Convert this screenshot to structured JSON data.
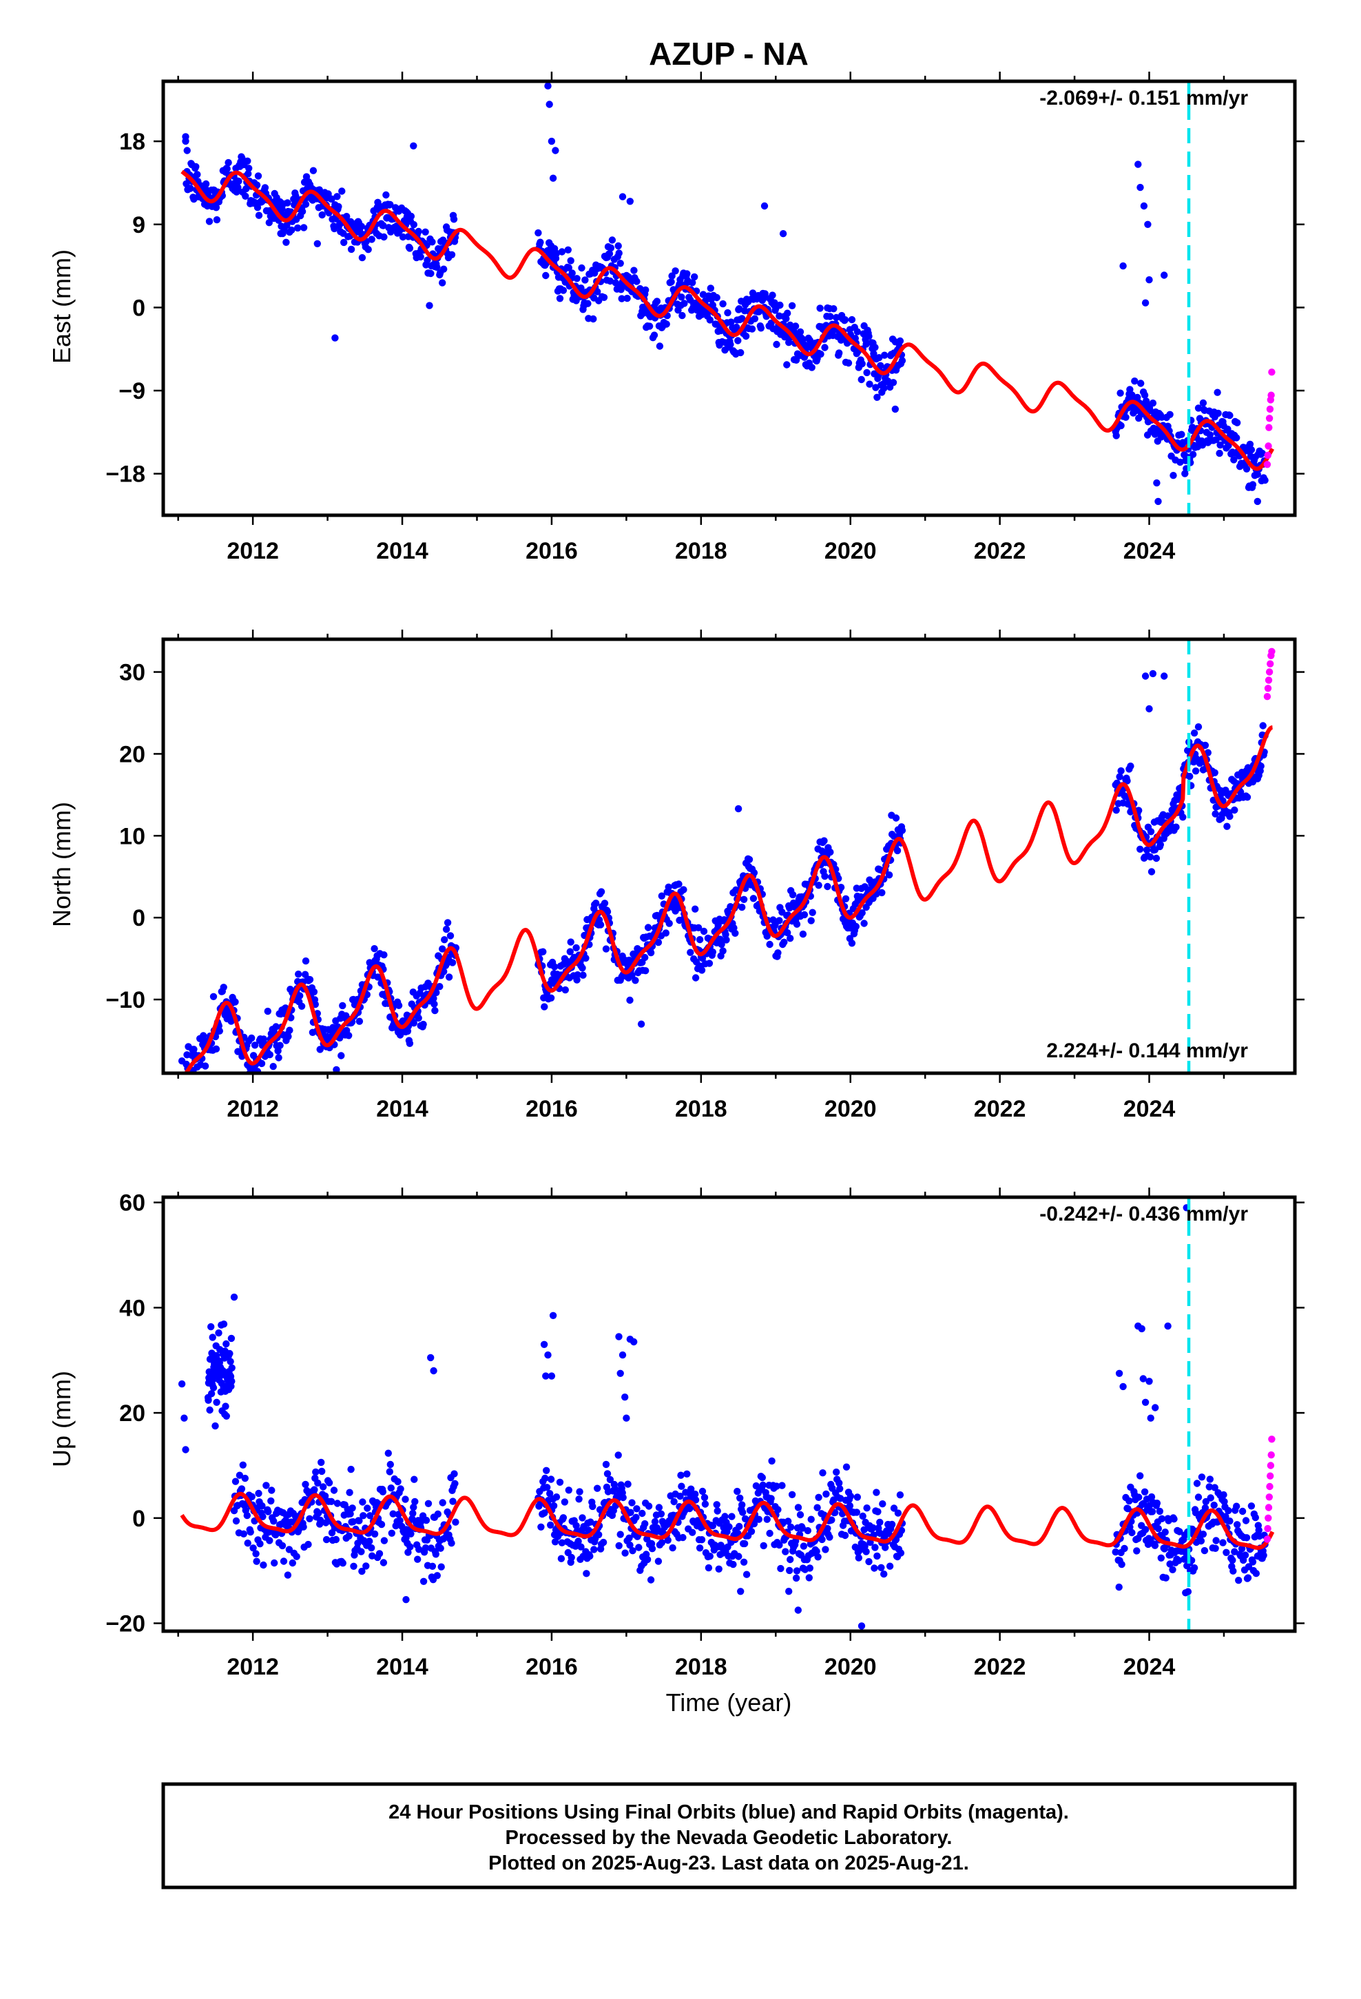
{
  "title": "AZUP - NA",
  "xlabel": "Time (year)",
  "footer": [
    "24 Hour Positions Using Final Orbits (blue) and Rapid Orbits (magenta).",
    "Processed by the Nevada Geodetic Laboratory.",
    "Plotted on 2025-Aug-23. Last data on 2025-Aug-21."
  ],
  "colors": {
    "final_orbits": "#0000ff",
    "rapid_orbits": "#ff00ff",
    "model": "#ff0000",
    "event_marker": "#00e5ee"
  },
  "chart_data": [
    {
      "type": "scatter",
      "component": "east",
      "ylabel": "East (mm)",
      "rate_text": "-2.069+/- 0.151 mm/yr",
      "rate_position": "top-right",
      "xlim": [
        2010.8,
        2025.95
      ],
      "ylim": [
        -22.5,
        24.5
      ],
      "yticks": [
        -18,
        -9,
        0,
        9,
        18
      ],
      "yticklabels": [
        "−18",
        "−9",
        "0",
        "9",
        "18"
      ],
      "xticks": [
        2012,
        2014,
        2016,
        2018,
        2020,
        2022,
        2024
      ],
      "xticklabels": [
        "2012",
        "2014",
        "2016",
        "2018",
        "2020",
        "2022",
        "2024"
      ],
      "event_line_x": 2024.53,
      "model": {
        "start": 2011.05,
        "end": 2025.65,
        "offset": 14.3,
        "rate": -2.069,
        "amp_annual": 1.7,
        "amp_semi": 0.5,
        "phase_annual": 0.62,
        "phase_semi": 0.1
      },
      "data_segments": [
        [
          2011.1,
          2014.72
        ],
        [
          2015.82,
          2020.7
        ],
        [
          2023.55,
          2025.55
        ]
      ],
      "scatter_sigma": 1.3,
      "rapid": {
        "start": 2025.58,
        "end": 2025.64,
        "values": [
          -17,
          -16,
          -15,
          -13,
          -12,
          -11,
          -10,
          -9.5,
          -7
        ]
      },
      "outliers": [
        [
          2011.1,
          18.5
        ],
        [
          2011.12,
          17
        ],
        [
          2013.1,
          -3.3
        ],
        [
          2014.15,
          17.5
        ],
        [
          2015.95,
          24
        ],
        [
          2015.97,
          22
        ],
        [
          2016.0,
          18
        ],
        [
          2016.05,
          17
        ],
        [
          2016.02,
          14
        ],
        [
          2016.95,
          12
        ],
        [
          2017.05,
          11.5
        ],
        [
          2018.85,
          11
        ],
        [
          2019.1,
          8
        ],
        [
          2020.6,
          -11
        ],
        [
          2023.65,
          4.5
        ],
        [
          2023.85,
          15.5
        ],
        [
          2023.88,
          13
        ],
        [
          2023.93,
          11
        ],
        [
          2023.98,
          9
        ],
        [
          2023.95,
          0.5
        ],
        [
          2024.0,
          3
        ],
        [
          2024.2,
          3.5
        ],
        [
          2024.1,
          -19
        ],
        [
          2024.12,
          -21
        ],
        [
          2025.45,
          -21
        ]
      ]
    },
    {
      "type": "scatter",
      "component": "north",
      "ylabel": "North (mm)",
      "rate_text": "2.224+/- 0.144 mm/yr",
      "rate_position": "bottom-right",
      "xlim": [
        2010.8,
        2025.95
      ],
      "ylim": [
        -19,
        34
      ],
      "yticks": [
        -10,
        0,
        10,
        20,
        30
      ],
      "yticklabels": [
        "−10",
        "0",
        "10",
        "20",
        "30"
      ],
      "xticks": [
        2012,
        2014,
        2016,
        2018,
        2020,
        2022,
        2024
      ],
      "xticklabels": [
        "2012",
        "2014",
        "2016",
        "2018",
        "2020",
        "2022",
        "2024"
      ],
      "event_line_x": 2024.53,
      "model": {
        "start": 2011.05,
        "end": 2025.65,
        "offset": -16.3,
        "rate": 2.224,
        "amp_annual": 3.6,
        "amp_semi": 1.2,
        "phase_annual": 0.35,
        "phase_semi": 0.05,
        "jump_at": 2024.45,
        "jump": 2.5
      },
      "data_segments": [
        [
          2011.1,
          2014.72
        ],
        [
          2015.82,
          2020.7
        ],
        [
          2023.55,
          2025.55
        ]
      ],
      "scatter_sigma": 1.4,
      "rapid": {
        "start": 2025.58,
        "end": 2025.64,
        "values": [
          27,
          28,
          29,
          30,
          31,
          32,
          32.5
        ]
      },
      "outliers": [
        [
          2011.05,
          -17.5
        ],
        [
          2017.2,
          -13
        ],
        [
          2018.5,
          13.3
        ],
        [
          2020.55,
          12.5
        ],
        [
          2023.95,
          29.5
        ],
        [
          2024.05,
          29.8
        ],
        [
          2024.2,
          29.5
        ],
        [
          2023.75,
          18.5
        ],
        [
          2024.0,
          25.5
        ]
      ]
    },
    {
      "type": "scatter",
      "component": "up",
      "ylabel": "Up (mm)",
      "rate_text": "-0.242+/- 0.436 mm/yr",
      "rate_position": "top-right",
      "xlim": [
        2010.8,
        2025.95
      ],
      "ylim": [
        -21.5,
        61
      ],
      "yticks": [
        -20,
        0,
        20,
        40,
        60
      ],
      "yticklabels": [
        "−20",
        "0",
        "20",
        "40",
        "60"
      ],
      "xticks": [
        2012,
        2014,
        2016,
        2018,
        2020,
        2022,
        2024
      ],
      "xticklabels": [
        "2012",
        "2014",
        "2016",
        "2018",
        "2020",
        "2022",
        "2024"
      ],
      "event_line_x": 2024.53,
      "model": {
        "start": 2011.05,
        "end": 2025.65,
        "offset": 0.5,
        "rate": -0.242,
        "amp_annual": 3.3,
        "amp_semi": 1.0,
        "phase_annual": 0.6,
        "phase_semi": 0.2
      },
      "data_segments": [
        [
          2011.75,
          2014.72
        ],
        [
          2015.82,
          2020.7
        ],
        [
          2023.55,
          2025.55
        ]
      ],
      "scatter_sigma": 3.6,
      "cluster": {
        "start": 2011.4,
        "end": 2011.72,
        "center": 28,
        "sigma": 3.5
      },
      "rapid": {
        "start": 2025.58,
        "end": 2025.64,
        "values": [
          -4,
          -2,
          0,
          2,
          4,
          6,
          8,
          10,
          12,
          15
        ]
      },
      "outliers": [
        [
          2011.05,
          25.5
        ],
        [
          2011.08,
          19
        ],
        [
          2011.1,
          13
        ],
        [
          2011.75,
          42
        ],
        [
          2014.38,
          30.5
        ],
        [
          2014.42,
          28
        ],
        [
          2014.05,
          -15.5
        ],
        [
          2015.9,
          33
        ],
        [
          2015.95,
          31
        ],
        [
          2016.02,
          38.5
        ],
        [
          2016.0,
          27
        ],
        [
          2015.92,
          27
        ],
        [
          2016.9,
          34.5
        ],
        [
          2016.95,
          31
        ],
        [
          2017.05,
          34
        ],
        [
          2017.1,
          33.5
        ],
        [
          2016.92,
          27.5
        ],
        [
          2016.98,
          23
        ],
        [
          2017.0,
          19
        ],
        [
          2019.3,
          -17.5
        ],
        [
          2020.15,
          -20.5
        ],
        [
          2023.6,
          27.5
        ],
        [
          2023.65,
          25
        ],
        [
          2023.85,
          36.5
        ],
        [
          2023.9,
          36
        ],
        [
          2024.25,
          36.5
        ],
        [
          2023.92,
          26.5
        ],
        [
          2024.0,
          26
        ],
        [
          2023.95,
          22
        ],
        [
          2024.02,
          19
        ],
        [
          2024.08,
          21
        ],
        [
          2024.5,
          59
        ],
        [
          2024.52,
          -14
        ]
      ]
    }
  ]
}
